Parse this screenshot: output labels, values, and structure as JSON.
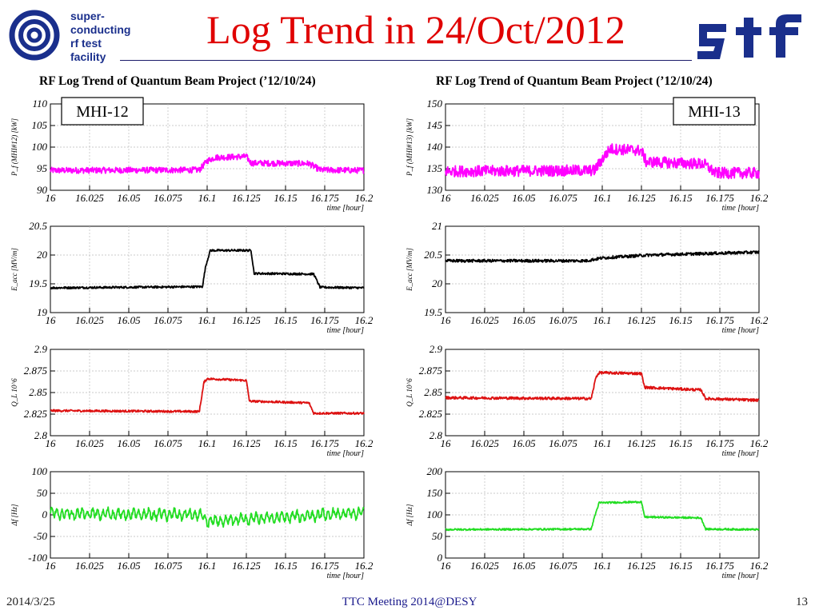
{
  "header": {
    "title": "Log Trend in 24/Oct/2012",
    "logo_left_lines": [
      "super-",
      "conducting",
      "rf  test",
      "facility"
    ],
    "logo_right_text": "stf"
  },
  "panels": [
    {
      "heading": "RF Log Trend of Quantum Beam Project (’12/10/24)",
      "label": "MHI-12"
    },
    {
      "heading": "RF Log Trend of Quantum Beam Project (’12/10/24)",
      "label": "MHI-13"
    }
  ],
  "colors": {
    "title": "#e00000",
    "power": "#ff00ff",
    "field": "#000000",
    "qvalue": "#dd1111",
    "detune": "#22dd22"
  },
  "chart_data": [
    {
      "type": "line",
      "panel": 0,
      "row": 0,
      "color": "#ff00ff",
      "ylabel": "P_f (MHI#12) [kW]",
      "xlabel": "time [hour]",
      "xlim": [
        16,
        16.2
      ],
      "ylim": [
        90,
        110
      ],
      "yticks": [
        90,
        95,
        100,
        105,
        110
      ],
      "ytick_labels": [
        "90",
        "95",
        "100",
        "105",
        "110"
      ],
      "noise": 0.7,
      "series": [
        {
          "x": [
            16,
            16.095,
            16.1,
            16.105,
            16.125,
            16.128,
            16.165,
            16.172,
            16.2
          ],
          "y": [
            94.6,
            94.7,
            96.8,
            97.6,
            97.8,
            96.3,
            96.2,
            94.7,
            94.6
          ]
        }
      ]
    },
    {
      "type": "line",
      "panel": 0,
      "row": 1,
      "color": "#000000",
      "ylabel": "E_acc [MV/m]",
      "xlabel": "time [hour]",
      "xlim": [
        16,
        16.2
      ],
      "ylim": [
        19,
        20.5
      ],
      "yticks": [
        19,
        19.5,
        20,
        20.5
      ],
      "ytick_labels": [
        "19",
        "19.5",
        "20",
        "20.5"
      ],
      "noise": 0.018,
      "series": [
        {
          "x": [
            16,
            16.097,
            16.099,
            16.102,
            16.128,
            16.13,
            16.168,
            16.172,
            16.2
          ],
          "y": [
            19.43,
            19.45,
            19.8,
            20.08,
            20.08,
            19.68,
            19.67,
            19.44,
            19.43
          ]
        }
      ]
    },
    {
      "type": "line",
      "panel": 0,
      "row": 2,
      "color": "#dd1111",
      "ylabel": "Q_L 10^6",
      "xlabel": "time [hour]",
      "xlim": [
        16,
        16.2
      ],
      "ylim": [
        2.8,
        2.9
      ],
      "yticks": [
        2.8,
        2.825,
        2.85,
        2.875,
        2.9
      ],
      "ytick_labels": [
        "2.8",
        "2.825",
        "2.85",
        "2.875",
        "2.9"
      ],
      "noise": 0.0012,
      "series": [
        {
          "x": [
            16,
            16.095,
            16.098,
            16.1,
            16.125,
            16.127,
            16.165,
            16.168,
            16.2
          ],
          "y": [
            2.829,
            2.828,
            2.862,
            2.866,
            2.864,
            2.84,
            2.838,
            2.826,
            2.826
          ]
        }
      ]
    },
    {
      "type": "line",
      "panel": 0,
      "row": 3,
      "color": "#22dd22",
      "ylabel": "Δf [Hz]",
      "xlabel": "time [hour]",
      "xlim": [
        16,
        16.2
      ],
      "ylim": [
        -100,
        100
      ],
      "yticks": [
        -100,
        -50,
        0,
        50,
        100
      ],
      "ytick_labels": [
        "-100",
        "-50",
        "0",
        "50",
        "100"
      ],
      "noise": 5,
      "wave": 9,
      "series": [
        {
          "x": [
            16,
            16.095,
            16.1,
            16.125,
            16.2
          ],
          "y": [
            3,
            0,
            -15,
            -10,
            5
          ]
        }
      ]
    },
    {
      "type": "line",
      "panel": 1,
      "row": 0,
      "color": "#ff00ff",
      "ylabel": "P_f (MHI#13) [kW]",
      "xlabel": "time [hour]",
      "xlim": [
        16,
        16.2
      ],
      "ylim": [
        130,
        150
      ],
      "yticks": [
        130,
        135,
        140,
        145,
        150
      ],
      "ytick_labels": [
        "130",
        "135",
        "140",
        "145",
        "150"
      ],
      "noise": 1.3,
      "series": [
        {
          "x": [
            16,
            16.095,
            16.1,
            16.105,
            16.125,
            16.128,
            16.165,
            16.172,
            16.2
          ],
          "y": [
            134.4,
            134.6,
            137.2,
            139.6,
            139.2,
            136.6,
            136.1,
            134,
            134
          ]
        }
      ]
    },
    {
      "type": "line",
      "panel": 1,
      "row": 1,
      "color": "#000000",
      "ylabel": "E_acc [MV/m]",
      "xlabel": "time [hour]",
      "xlim": [
        16,
        16.2
      ],
      "ylim": [
        19.5,
        21
      ],
      "yticks": [
        19.5,
        20,
        20.5,
        21
      ],
      "ytick_labels": [
        "19.5",
        "20",
        "20.5",
        "21"
      ],
      "noise": 0.025,
      "series": [
        {
          "x": [
            16,
            16.09,
            16.1,
            16.13,
            16.2
          ],
          "y": [
            20.4,
            20.4,
            20.45,
            20.5,
            20.55
          ]
        }
      ]
    },
    {
      "type": "line",
      "panel": 1,
      "row": 2,
      "color": "#dd1111",
      "ylabel": "Q_L 10^6",
      "xlabel": "time [hour]",
      "xlim": [
        16,
        16.2
      ],
      "ylim": [
        2.8,
        2.9
      ],
      "yticks": [
        2.8,
        2.825,
        2.85,
        2.875,
        2.9
      ],
      "ytick_labels": [
        "2.8",
        "2.825",
        "2.85",
        "2.875",
        "2.9"
      ],
      "noise": 0.0015,
      "series": [
        {
          "x": [
            16,
            16.093,
            16.096,
            16.098,
            16.125,
            16.127,
            16.163,
            16.166,
            16.2
          ],
          "y": [
            2.844,
            2.843,
            2.868,
            2.873,
            2.872,
            2.856,
            2.853,
            2.843,
            2.841
          ]
        }
      ]
    },
    {
      "type": "line",
      "panel": 1,
      "row": 3,
      "color": "#22dd22",
      "ylabel": "Δf [Hz]",
      "xlabel": "time [hour]",
      "xlim": [
        16,
        16.2
      ],
      "ylim": [
        0,
        200
      ],
      "yticks": [
        0,
        50,
        100,
        150,
        200
      ],
      "ytick_labels": [
        "0",
        "50",
        "100",
        "150",
        "200"
      ],
      "noise": 2,
      "series": [
        {
          "x": [
            16,
            16.093,
            16.095,
            16.098,
            16.125,
            16.127,
            16.163,
            16.166,
            16.2
          ],
          "y": [
            66,
            67,
            95,
            128,
            130,
            95,
            93,
            67,
            66
          ]
        }
      ]
    }
  ],
  "xtick_labels": [
    "16",
    "16.025",
    "16.05",
    "16.075",
    "16.1",
    "16.125",
    "16.15",
    "16.175",
    "16.2"
  ],
  "xaxis_label": "time [hour]",
  "footer": {
    "date": "2014/3/25",
    "center": "TTC Meeting 2014@DESY",
    "page": "13"
  }
}
